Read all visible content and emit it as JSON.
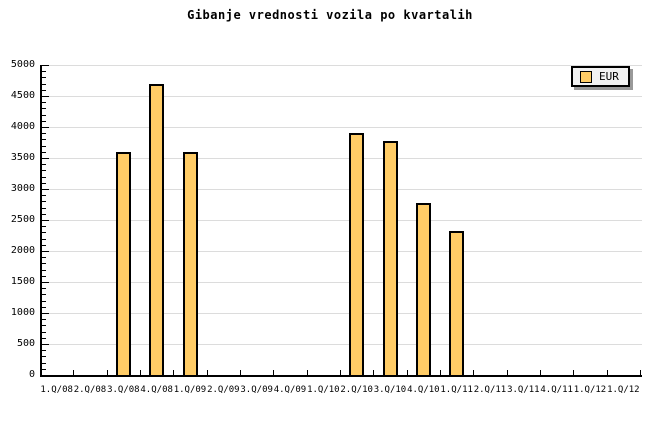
{
  "title": "Gibanje vrednosti vozila po kvartalih",
  "legend": {
    "label": "EUR"
  },
  "colors": {
    "background": "#FFFFFF",
    "bar_fill": "#FFCC66",
    "bar_border": "#000000",
    "gridline": "#DCDCDC",
    "axis": "#000000",
    "text": "#000000",
    "legend_bg": "#F2F2F2",
    "legend_shadow": "#999999"
  },
  "chart_data": {
    "type": "bar",
    "title": "Gibanje vrednosti vozila po kvartalih",
    "series_name": "EUR",
    "categories": [
      "1.Q/08",
      "2.Q/08",
      "3.Q/08",
      "4.Q/08",
      "1.Q/09",
      "2.Q/09",
      "3.Q/09",
      "4.Q/09",
      "1.Q/10",
      "2.Q/10",
      "3.Q/10",
      "4.Q/10",
      "1.Q/11",
      "2.Q/11",
      "3.Q/11",
      "4.Q/11",
      "1.Q/12",
      "1.Q/12"
    ],
    "values": [
      null,
      null,
      3590,
      4700,
      3590,
      null,
      null,
      null,
      null,
      3910,
      3780,
      2780,
      2320,
      null,
      null,
      null,
      null,
      null
    ],
    "xlabel": "",
    "ylabel": "",
    "ylim": [
      0,
      5000
    ],
    "ytick_step": 500,
    "y_minor_tick_step": 100,
    "grid": "horizontal",
    "legend_position": "top-right"
  }
}
